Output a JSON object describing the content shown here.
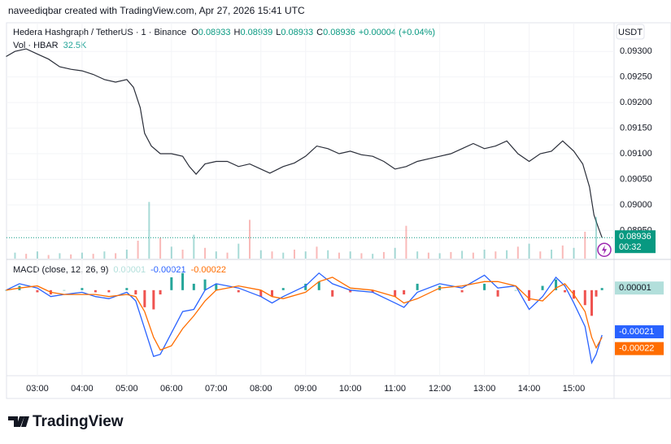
{
  "header": {
    "attribution": "naveediqbar created with TradingView.com, Apr 27, 2026 15:41 UTC",
    "symbol": "Hedera Hashgraph / TetherUS · 1 · Binance",
    "ohlc": [
      {
        "key": "O",
        "value": "0.08933"
      },
      {
        "key": "H",
        "value": "0.08939"
      },
      {
        "key": "L",
        "value": "0.08933"
      },
      {
        "key": "C",
        "value": "0.08936"
      }
    ],
    "change": "+0.00004 (+0.04%)",
    "currency": "USDT",
    "countdown": "00:32"
  },
  "logo": "TradingView",
  "chart_data": [
    {
      "type": "line",
      "color": "#2a2e39",
      "last_color": "#089981",
      "x": [
        2.3,
        2.5,
        2.75,
        3.0,
        3.25,
        3.5,
        3.75,
        4.0,
        4.25,
        4.5,
        4.75,
        5.0,
        5.15,
        5.3,
        5.4,
        5.55,
        5.75,
        6.0,
        6.25,
        6.4,
        6.55,
        6.75,
        7.0,
        7.25,
        7.5,
        7.75,
        8.0,
        8.2,
        8.5,
        8.75,
        9.0,
        9.25,
        9.5,
        9.75,
        10.0,
        10.25,
        10.5,
        10.75,
        11.0,
        11.25,
        11.5,
        11.75,
        12.0,
        12.25,
        12.5,
        12.75,
        13.0,
        13.25,
        13.5,
        13.75,
        14.0,
        14.25,
        14.5,
        14.75,
        15.0,
        15.2,
        15.35,
        15.45,
        15.55,
        15.63
      ],
      "values": [
        0.0929,
        0.093,
        0.09305,
        0.09295,
        0.09285,
        0.0927,
        0.09265,
        0.09262,
        0.09255,
        0.09245,
        0.0924,
        0.09245,
        0.0923,
        0.0919,
        0.0914,
        0.09115,
        0.091,
        0.091,
        0.09095,
        0.09075,
        0.0906,
        0.0908,
        0.09085,
        0.09085,
        0.09075,
        0.0908,
        0.0907,
        0.09062,
        0.09075,
        0.09082,
        0.09095,
        0.09115,
        0.0911,
        0.091,
        0.09105,
        0.09098,
        0.09095,
        0.09085,
        0.0907,
        0.09075,
        0.09085,
        0.0909,
        0.09095,
        0.091,
        0.0911,
        0.0912,
        0.0911,
        0.09115,
        0.09125,
        0.091,
        0.09085,
        0.091,
        0.09105,
        0.09125,
        0.09105,
        0.0908,
        0.09035,
        0.0898,
        0.08955,
        0.08936
      ],
      "xlim": [
        2.31,
        15.9
      ],
      "xticks": [
        {
          "value": 3,
          "label": "03:00"
        },
        {
          "value": 4,
          "label": "04:00"
        },
        {
          "value": 5,
          "label": "05:00"
        },
        {
          "value": 6,
          "label": "06:00"
        },
        {
          "value": 7,
          "label": "07:00"
        },
        {
          "value": 8,
          "label": "08:00"
        },
        {
          "value": 9,
          "label": "09:00"
        },
        {
          "value": 10,
          "label": "10:00"
        },
        {
          "value": 11,
          "label": "11:00"
        },
        {
          "value": 12,
          "label": "12:00"
        },
        {
          "value": 13,
          "label": "13:00"
        },
        {
          "value": 14,
          "label": "14:00"
        },
        {
          "value": 15,
          "label": "15:00"
        }
      ],
      "ylim": [
        0.08895,
        0.09356
      ],
      "yticks": [
        {
          "value": 0.0895,
          "label": "0.08950"
        },
        {
          "value": 0.09,
          "label": "0.09000"
        },
        {
          "value": 0.0905,
          "label": "0.09050"
        },
        {
          "value": 0.091,
          "label": "0.09100"
        },
        {
          "value": 0.0915,
          "label": "0.09150"
        },
        {
          "value": 0.092,
          "label": "0.09200"
        },
        {
          "value": 0.0925,
          "label": "0.09250"
        },
        {
          "value": 0.093,
          "label": "0.09300"
        }
      ]
    },
    {
      "type": "bar",
      "name": "Vol · HBAR",
      "legend_value": "32.5K",
      "colors": [
        "#26a69a66",
        "#ef535066"
      ],
      "x": [
        2.5,
        2.75,
        3.0,
        3.25,
        3.5,
        3.75,
        4.0,
        4.25,
        4.5,
        4.75,
        5.0,
        5.25,
        5.5,
        5.75,
        6.0,
        6.25,
        6.5,
        6.75,
        7.0,
        7.25,
        7.5,
        7.75,
        8.0,
        8.25,
        8.5,
        8.75,
        9.0,
        9.25,
        9.5,
        9.75,
        10.0,
        10.25,
        10.5,
        10.75,
        11.0,
        11.25,
        11.5,
        11.75,
        12.0,
        12.25,
        12.5,
        12.75,
        13.0,
        13.25,
        13.5,
        13.75,
        14.0,
        14.25,
        14.5,
        14.75,
        15.0,
        15.25,
        15.5
      ],
      "values": [
        10,
        8,
        12,
        6,
        9,
        7,
        10,
        8,
        12,
        9,
        15,
        30,
        95,
        35,
        20,
        15,
        40,
        18,
        12,
        10,
        25,
        65,
        14,
        12,
        10,
        15,
        12,
        20,
        14,
        10,
        12,
        9,
        8,
        11,
        18,
        55,
        12,
        10,
        9,
        11,
        13,
        10,
        15,
        12,
        14,
        20,
        25,
        12,
        15,
        22,
        18,
        45,
        70
      ],
      "ylim": [
        0,
        150
      ]
    },
    {
      "type": "macd",
      "title": "MACD (close, 12, 26, 9)",
      "x": [
        2.3,
        2.6,
        3.0,
        3.3,
        3.6,
        4.0,
        4.3,
        4.6,
        5.0,
        5.2,
        5.4,
        5.6,
        5.75,
        6.0,
        6.25,
        6.5,
        6.75,
        7.0,
        7.5,
        8.0,
        8.25,
        8.5,
        9.0,
        9.3,
        9.6,
        10.0,
        10.5,
        11.0,
        11.2,
        11.5,
        12.0,
        12.5,
        13.0,
        13.3,
        13.7,
        14.0,
        14.3,
        14.6,
        14.8,
        15.0,
        15.25,
        15.4,
        15.5,
        15.63
      ],
      "series": [
        {
          "color": "#2962ff",
          "values": [
            0,
            3e-05,
            1e-05,
            -3e-05,
            -2e-05,
            -1e-05,
            -3e-05,
            -4e-05,
            -1e-05,
            -5e-05,
            -0.00018,
            -0.00031,
            -0.0003,
            -0.0002,
            -0.0001,
            -9e-05,
            0,
            3e-05,
            1e-05,
            -3e-05,
            -6e-05,
            -3e-05,
            2e-05,
            8e-05,
            3e-05,
            0,
            -1e-05,
            -6e-05,
            -8e-05,
            -1e-05,
            3e-05,
            1e-05,
            7e-05,
            1e-05,
            2e-05,
            -9e-05,
            -3e-05,
            6e-05,
            2e-05,
            -6e-05,
            -0.00017,
            -0.00034,
            -0.0003,
            -0.00021
          ]
        },
        {
          "color": "#ff6d00",
          "values": [
            0,
            1e-05,
            2e-05,
            -1e-05,
            -2e-05,
            -2e-05,
            -2e-05,
            -3e-05,
            -2e-05,
            -3e-05,
            -0.0001,
            -0.00022,
            -0.00028,
            -0.00026,
            -0.00018,
            -0.00012,
            -5e-05,
            0,
            2e-05,
            0,
            -3e-05,
            -4e-05,
            -1e-05,
            4e-05,
            6e-05,
            1e-05,
            0,
            -3e-05,
            -6e-05,
            -4e-05,
            1e-05,
            2e-05,
            4e-05,
            4e-05,
            2e-05,
            -4e-05,
            -5e-05,
            1e-05,
            3e-05,
            -2e-05,
            -0.0001,
            -0.00022,
            -0.00027,
            -0.00022
          ]
        }
      ],
      "histogram": {
        "colors": {
          "up": "#26a69a",
          "down": "#ef5350"
        },
        "values": [
          0,
          2e-05,
          -1e-05,
          -2e-05,
          0,
          1e-05,
          -1e-05,
          -1e-05,
          1e-05,
          -2e-05,
          -8e-05,
          -9e-05,
          -2e-05,
          6e-05,
          8e-05,
          3e-05,
          5e-05,
          3e-05,
          -1e-05,
          -3e-05,
          -3e-05,
          1e-05,
          3e-05,
          4e-05,
          -3e-05,
          -1e-05,
          -1e-05,
          -3e-05,
          -2e-05,
          3e-05,
          2e-05,
          -1e-05,
          3e-05,
          -3e-05,
          0,
          -5e-05,
          2e-05,
          5e-05,
          -1e-05,
          -4e-05,
          -7e-05,
          -0.00012,
          -3e-05,
          1e-05
        ]
      },
      "ylim": [
        -0.0004,
        0.00014
      ]
    }
  ]
}
